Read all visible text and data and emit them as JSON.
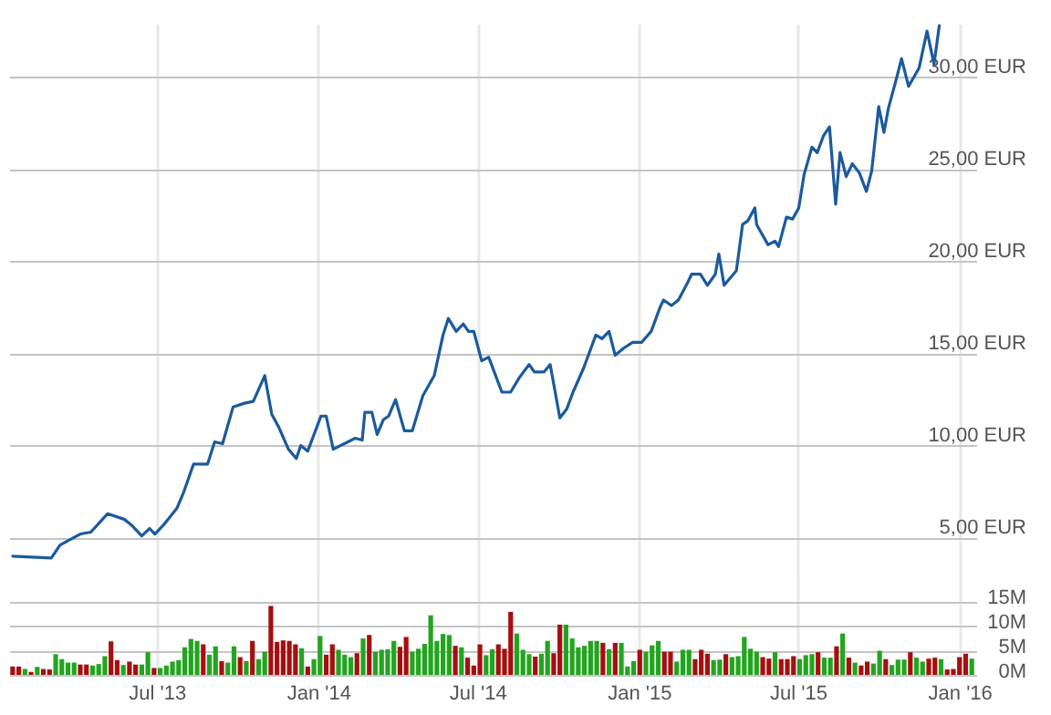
{
  "chart_data": [
    {
      "type": "line",
      "color": "#1b5a9c",
      "xlim": [
        "2013-01-14",
        "2016-01-20"
      ],
      "xticks": [
        {
          "value": "2013-07-01",
          "label": null
        },
        {
          "value": "2014-01-01",
          "label": null
        },
        {
          "value": "2014-07-01",
          "label": null
        },
        {
          "value": "2015-01-01",
          "label": null
        },
        {
          "value": "2015-07-01",
          "label": null
        },
        {
          "value": "2016-01-01",
          "label": null
        }
      ],
      "ylim": [
        2.9,
        32.9
      ],
      "yticks": [
        {
          "value": 5,
          "label": "5,00 EUR"
        },
        {
          "value": 10,
          "label": "10,00 EUR"
        },
        {
          "value": 15,
          "label": "15,00 EUR"
        },
        {
          "value": 20,
          "label": "20,00 EUR"
        },
        {
          "value": 25,
          "label": "25,00 EUR"
        },
        {
          "value": 30,
          "label": "30,00 EUR"
        }
      ],
      "grid": true,
      "tick_labels": "y",
      "x": [
        "2013-01-18",
        "2013-03-03",
        "2013-03-13",
        "2013-04-05",
        "2013-04-17",
        "2013-05-06",
        "2013-05-25",
        "2013-06-02",
        "2013-06-14",
        "2013-06-23",
        "2013-06-29",
        "2013-07-09",
        "2013-07-24",
        "2013-08-01",
        "2013-08-12",
        "2013-08-28",
        "2013-09-05",
        "2013-09-14",
        "2013-09-26",
        "2013-10-09",
        "2013-10-19",
        "2013-11-01",
        "2013-11-09",
        "2013-11-17",
        "2013-11-28",
        "2013-12-07",
        "2013-12-12",
        "2013-12-20",
        "2014-01-04",
        "2014-01-10",
        "2014-01-18",
        "2014-02-12",
        "2014-02-20",
        "2014-02-23",
        "2014-03-03",
        "2014-03-09",
        "2014-03-16",
        "2014-03-22",
        "2014-03-30",
        "2014-04-09",
        "2014-04-18",
        "2014-04-30",
        "2014-05-13",
        "2014-05-23",
        "2014-05-29",
        "2014-06-07",
        "2014-06-15",
        "2014-06-21",
        "2014-06-27",
        "2014-07-06",
        "2014-07-14",
        "2014-07-29",
        "2014-08-08",
        "2014-08-18",
        "2014-08-29",
        "2014-09-04",
        "2014-09-15",
        "2014-09-22",
        "2014-10-03",
        "2014-10-11",
        "2014-10-18",
        "2014-10-30",
        "2014-11-13",
        "2014-11-20",
        "2014-11-28",
        "2014-12-05",
        "2014-12-15",
        "2014-12-25",
        "2015-01-04",
        "2015-01-15",
        "2015-01-25",
        "2015-01-29",
        "2015-02-07",
        "2015-02-15",
        "2015-02-25",
        "2015-03-02",
        "2015-03-12",
        "2015-03-20",
        "2015-03-29",
        "2015-04-02",
        "2015-04-08",
        "2015-04-22",
        "2015-04-29",
        "2015-05-05",
        "2015-05-13",
        "2015-05-15",
        "2015-05-28",
        "2015-06-05",
        "2015-06-09",
        "2015-06-18",
        "2015-06-25",
        "2015-07-02",
        "2015-07-08",
        "2015-07-17",
        "2015-07-23",
        "2015-07-30",
        "2015-08-06",
        "2015-08-13",
        "2015-08-18",
        "2015-08-25",
        "2015-09-01",
        "2015-09-09",
        "2015-09-17",
        "2015-09-23",
        "2015-10-01",
        "2015-10-07",
        "2015-10-12",
        "2015-10-20",
        "2015-10-27",
        "2015-11-04",
        "2015-11-16",
        "2015-11-25",
        "2015-12-03",
        "2015-12-09"
      ],
      "values": [
        4.0,
        3.9,
        4.6,
        5.2,
        5.3,
        6.3,
        6.0,
        5.7,
        5.1,
        5.5,
        5.2,
        5.7,
        6.6,
        7.5,
        9.0,
        9.0,
        10.2,
        10.1,
        12.1,
        12.3,
        12.4,
        13.8,
        11.7,
        11.0,
        9.8,
        9.3,
        10.0,
        9.7,
        11.6,
        11.6,
        9.8,
        10.4,
        10.3,
        11.8,
        11.8,
        10.6,
        11.4,
        11.6,
        12.5,
        10.8,
        10.8,
        12.7,
        13.8,
        16.0,
        16.9,
        16.2,
        16.6,
        16.2,
        16.2,
        14.6,
        14.8,
        12.9,
        12.9,
        13.7,
        14.4,
        14.0,
        14.0,
        14.4,
        11.5,
        12.0,
        12.9,
        14.2,
        16.0,
        15.8,
        16.2,
        14.9,
        15.3,
        15.6,
        15.6,
        16.2,
        17.5,
        17.9,
        17.6,
        17.9,
        18.8,
        19.3,
        19.3,
        18.7,
        19.3,
        20.4,
        18.7,
        19.5,
        22.0,
        22.2,
        22.9,
        22.0,
        20.9,
        21.1,
        20.8,
        22.4,
        22.3,
        22.9,
        24.7,
        26.2,
        25.9,
        26.8,
        27.3,
        23.1,
        25.9,
        24.6,
        25.3,
        24.8,
        23.8,
        24.9,
        28.4,
        27.0,
        28.3,
        29.7,
        31.0,
        29.5,
        30.5,
        32.5,
        30.7,
        32.8
      ]
    },
    {
      "type": "bar",
      "xlim": [
        "2013-01-14",
        "2016-01-20"
      ],
      "xticks": [
        {
          "value": "2013-07-01",
          "label": "Jul '13"
        },
        {
          "value": "2014-01-01",
          "label": "Jan '14"
        },
        {
          "value": "2014-07-01",
          "label": "Jul '14"
        },
        {
          "value": "2015-01-01",
          "label": "Jan '15"
        },
        {
          "value": "2015-07-01",
          "label": "Jul '15"
        },
        {
          "value": "2016-01-01",
          "label": "Jan '16"
        }
      ],
      "ylim": [
        0,
        20
      ],
      "yticks": [
        {
          "value": 0,
          "label": "0M"
        },
        {
          "value": 5,
          "label": "5M"
        },
        {
          "value": 10,
          "label": "10M"
        },
        {
          "value": 15,
          "label": "15M"
        }
      ],
      "grid": true,
      "x": [
        "2013-01-18",
        "2013-01-25",
        "2013-02-01",
        "2013-02-08",
        "2013-02-15",
        "2013-02-22",
        "2013-03-01",
        "2013-03-08",
        "2013-03-15",
        "2013-03-22",
        "2013-03-29",
        "2013-04-05",
        "2013-04-12",
        "2013-04-19",
        "2013-04-26",
        "2013-05-03",
        "2013-05-10",
        "2013-05-17",
        "2013-05-24",
        "2013-05-31",
        "2013-06-07",
        "2013-06-14",
        "2013-06-21",
        "2013-06-28",
        "2013-07-05",
        "2013-07-12",
        "2013-07-19",
        "2013-07-26",
        "2013-08-02",
        "2013-08-09",
        "2013-08-16",
        "2013-08-23",
        "2013-08-30",
        "2013-09-06",
        "2013-09-13",
        "2013-09-20",
        "2013-09-27",
        "2013-10-04",
        "2013-10-11",
        "2013-10-18",
        "2013-10-25",
        "2013-11-01",
        "2013-11-08",
        "2013-11-15",
        "2013-11-22",
        "2013-11-29",
        "2013-12-06",
        "2013-12-13",
        "2013-12-20",
        "2013-12-27",
        "2014-01-03",
        "2014-01-10",
        "2014-01-17",
        "2014-01-24",
        "2014-01-31",
        "2014-02-07",
        "2014-02-14",
        "2014-02-21",
        "2014-02-28",
        "2014-03-07",
        "2014-03-14",
        "2014-03-21",
        "2014-03-28",
        "2014-04-04",
        "2014-04-11",
        "2014-04-18",
        "2014-04-25",
        "2014-05-02",
        "2014-05-09",
        "2014-05-16",
        "2014-05-23",
        "2014-05-30",
        "2014-06-06",
        "2014-06-13",
        "2014-06-20",
        "2014-06-27",
        "2014-07-04",
        "2014-07-11",
        "2014-07-18",
        "2014-07-25",
        "2014-08-01",
        "2014-08-08",
        "2014-08-15",
        "2014-08-22",
        "2014-08-29",
        "2014-09-05",
        "2014-09-12",
        "2014-09-19",
        "2014-09-26",
        "2014-10-03",
        "2014-10-10",
        "2014-10-17",
        "2014-10-24",
        "2014-10-31",
        "2014-11-07",
        "2014-11-14",
        "2014-11-21",
        "2014-11-28",
        "2014-12-05",
        "2014-12-12",
        "2014-12-19",
        "2014-12-26",
        "2015-01-02",
        "2015-01-09",
        "2015-01-16",
        "2015-01-23",
        "2015-01-30",
        "2015-02-06",
        "2015-02-13",
        "2015-02-20",
        "2015-02-27",
        "2015-03-06",
        "2015-03-13",
        "2015-03-20",
        "2015-03-27",
        "2015-04-03",
        "2015-04-10",
        "2015-04-17",
        "2015-04-24",
        "2015-05-01",
        "2015-05-08",
        "2015-05-15",
        "2015-05-22",
        "2015-05-29",
        "2015-06-05",
        "2015-06-12",
        "2015-06-19",
        "2015-06-26",
        "2015-07-03",
        "2015-07-10",
        "2015-07-17",
        "2015-07-24",
        "2015-07-31",
        "2015-08-07",
        "2015-08-14",
        "2015-08-21",
        "2015-08-28",
        "2015-09-04",
        "2015-09-11",
        "2015-09-18",
        "2015-09-25",
        "2015-10-02",
        "2015-10-09",
        "2015-10-16",
        "2015-10-23",
        "2015-10-30",
        "2015-11-06",
        "2015-11-13",
        "2015-11-20",
        "2015-11-27",
        "2015-12-04",
        "2015-12-11",
        "2015-12-18",
        "2015-12-25",
        "2016-01-01",
        "2016-01-08",
        "2016-01-15"
      ],
      "values": [
        1.7,
        1.7,
        1.2,
        0.6,
        1.6,
        1.2,
        1.1,
        4.2,
        3.2,
        2.5,
        2.5,
        2.1,
        2.1,
        1.9,
        2.2,
        3.8,
        6.8,
        3.0,
        2.0,
        2.7,
        2.1,
        2.1,
        4.6,
        1.4,
        1.4,
        1.9,
        2.7,
        3.0,
        5.6,
        7.3,
        6.9,
        6.2,
        4.1,
        5.8,
        2.8,
        2.5,
        5.8,
        3.6,
        2.8,
        6.9,
        3.2,
        4.7,
        14.0,
        6.7,
        7.0,
        6.9,
        6.2,
        5.4,
        1.7,
        3.2,
        7.9,
        4.1,
        6.2,
        5.1,
        4.1,
        3.6,
        4.4,
        7.4,
        8.1,
        4.7,
        5.1,
        5.2,
        6.9,
        5.7,
        7.7,
        4.7,
        5.3,
        6.3,
        12.1,
        6.9,
        8.3,
        8.1,
        5.9,
        5.6,
        3.5,
        1.9,
        6.2,
        4.0,
        5.2,
        6.2,
        5.3,
        12.8,
        8.4,
        5.1,
        4.2,
        3.7,
        4.3,
        6.9,
        4.4,
        10.2,
        10.2,
        7.4,
        5.6,
        5.9,
        6.9,
        6.9,
        6.5,
        5.2,
        6.5,
        6.5,
        1.7,
        2.8,
        5.1,
        4.7,
        6.0,
        6.9,
        4.7,
        4.7,
        2.7,
        5.1,
        5.1,
        3.2,
        5.1,
        4.3,
        3.0,
        3.1,
        4.2,
        3.6,
        3.8,
        7.7,
        5.3,
        4.7,
        3.6,
        3.3,
        4.6,
        3.2,
        3.2,
        3.8,
        3.2,
        4.0,
        4.2,
        4.6,
        3.5,
        3.5,
        5.8,
        8.4,
        3.5,
        2.5,
        1.9,
        2.7,
        2.3,
        4.9,
        3.2,
        2.0,
        3.1,
        3.1,
        4.6,
        3.5,
        2.7,
        3.3,
        3.5,
        3.2,
        1.1,
        1.2,
        3.6,
        4.3,
        3.3
      ],
      "colors": [
        "#a50f0f",
        "#a50f0f",
        "#22a51e",
        "#a50f0f",
        "#22a51e",
        "#a50f0f",
        "#a50f0f",
        "#22a51e",
        "#22a51e",
        "#22a51e",
        "#22a51e",
        "#a50f0f",
        "#a50f0f",
        "#22a51e",
        "#22a51e",
        "#22a51e",
        "#a50f0f",
        "#a50f0f",
        "#22a51e",
        "#a50f0f",
        "#a50f0f",
        "#22a51e",
        "#22a51e",
        "#a50f0f",
        "#22a51e",
        "#22a51e",
        "#22a51e",
        "#22a51e",
        "#22a51e",
        "#22a51e",
        "#22a51e",
        "#a50f0f",
        "#22a51e",
        "#22a51e",
        "#a50f0f",
        "#22a51e",
        "#22a51e",
        "#a50f0f",
        "#22a51e",
        "#a50f0f",
        "#22a51e",
        "#22a51e",
        "#a50f0f",
        "#a50f0f",
        "#a50f0f",
        "#a50f0f",
        "#a50f0f",
        "#22a51e",
        "#a50f0f",
        "#22a51e",
        "#22a51e",
        "#a50f0f",
        "#a50f0f",
        "#22a51e",
        "#22a51e",
        "#22a51e",
        "#a50f0f",
        "#22a51e",
        "#a50f0f",
        "#22a51e",
        "#22a51e",
        "#22a51e",
        "#22a51e",
        "#a50f0f",
        "#a50f0f",
        "#22a51e",
        "#22a51e",
        "#22a51e",
        "#22a51e",
        "#22a51e",
        "#22a51e",
        "#22a51e",
        "#a50f0f",
        "#22a51e",
        "#a50f0f",
        "#a50f0f",
        "#a50f0f",
        "#22a51e",
        "#22a51e",
        "#a50f0f",
        "#a50f0f",
        "#a50f0f",
        "#22a51e",
        "#22a51e",
        "#22a51e",
        "#a50f0f",
        "#22a51e",
        "#22a51e",
        "#a50f0f",
        "#a50f0f",
        "#22a51e",
        "#22a51e",
        "#22a51e",
        "#22a51e",
        "#22a51e",
        "#22a51e",
        "#a50f0f",
        "#22a51e",
        "#a50f0f",
        "#22a51e",
        "#22a51e",
        "#22a51e",
        "#a50f0f",
        "#22a51e",
        "#22a51e",
        "#22a51e",
        "#a50f0f",
        "#a50f0f",
        "#22a51e",
        "#22a51e",
        "#22a51e",
        "#a50f0f",
        "#a50f0f",
        "#a50f0f",
        "#22a51e",
        "#22a51e",
        "#a50f0f",
        "#22a51e",
        "#22a51e",
        "#22a51e",
        "#22a51e",
        "#22a51e",
        "#a50f0f",
        "#a50f0f",
        "#22a51e",
        "#a50f0f",
        "#a50f0f",
        "#a50f0f",
        "#22a51e",
        "#22a51e",
        "#22a51e",
        "#a50f0f",
        "#22a51e",
        "#22a51e",
        "#a50f0f",
        "#22a51e",
        "#a50f0f",
        "#22a51e",
        "#a50f0f",
        "#a50f0f",
        "#22a51e",
        "#22a51e",
        "#a50f0f",
        "#22a51e",
        "#22a51e",
        "#22a51e",
        "#a50f0f",
        "#22a51e",
        "#22a51e",
        "#a50f0f",
        "#a50f0f",
        "#22a51e",
        "#a50f0f",
        "#a50f0f",
        "#a50f0f",
        "#a50f0f",
        "#22a51e"
      ]
    }
  ]
}
